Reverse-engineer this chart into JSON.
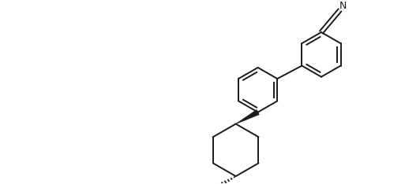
{
  "background": "#ffffff",
  "line_color": "#1a1a1a",
  "line_width": 1.4,
  "figsize": [
    5.32,
    2.34
  ],
  "dpi": 100,
  "xlim": [
    0,
    10.64
  ],
  "ylim": [
    0,
    4.68
  ]
}
